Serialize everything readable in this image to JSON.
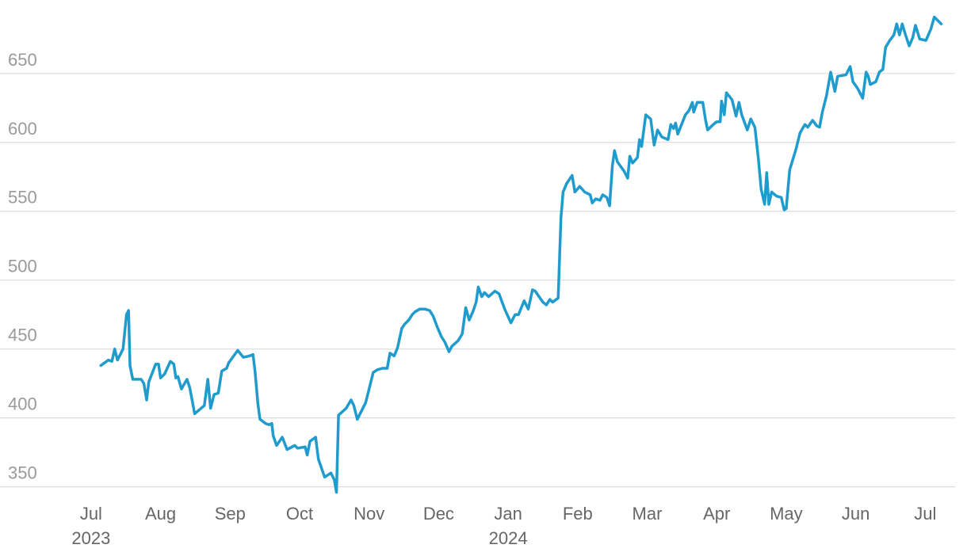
{
  "chart_data": {
    "type": "line",
    "color": "#1f9ccd",
    "grid": true,
    "xlim": [
      -1.31,
      12.43
    ],
    "ylim": [
      340,
      693
    ],
    "yticks": [
      350,
      400,
      450,
      500,
      550,
      600,
      650
    ],
    "xticks": [
      {
        "value": 0,
        "label": "Jul"
      },
      {
        "value": 1,
        "label": "Aug"
      },
      {
        "value": 2,
        "label": "Sep"
      },
      {
        "value": 3,
        "label": "Oct"
      },
      {
        "value": 4,
        "label": "Nov"
      },
      {
        "value": 5,
        "label": "Dec"
      },
      {
        "value": 6,
        "label": "Jan"
      },
      {
        "value": 7,
        "label": "Feb"
      },
      {
        "value": 8,
        "label": "Mar"
      },
      {
        "value": 9,
        "label": "Apr"
      },
      {
        "value": 10,
        "label": "May"
      },
      {
        "value": 11,
        "label": "Jun"
      },
      {
        "value": 12,
        "label": "Jul"
      }
    ],
    "year_labels": [
      {
        "value": 0,
        "label": "2023"
      },
      {
        "value": 6,
        "label": "2024"
      }
    ],
    "x": [
      0.14,
      0.25,
      0.3,
      0.34,
      0.38,
      0.46,
      0.51,
      0.54,
      0.56,
      0.6,
      0.72,
      0.76,
      0.8,
      0.83,
      0.93,
      0.97,
      1.0,
      1.06,
      1.14,
      1.19,
      1.22,
      1.25,
      1.3,
      1.38,
      1.42,
      1.49,
      1.63,
      1.68,
      1.72,
      1.77,
      1.83,
      1.88,
      1.95,
      1.98,
      2.11,
      2.19,
      2.28,
      2.33,
      2.36,
      2.4,
      2.43,
      2.51,
      2.56,
      2.6,
      2.62,
      2.67,
      2.75,
      2.82,
      2.93,
      2.97,
      3.08,
      3.11,
      3.15,
      3.23,
      3.27,
      3.36,
      3.45,
      3.5,
      3.53,
      3.56,
      3.67,
      3.74,
      3.78,
      3.83,
      3.9,
      3.95,
      4.0,
      4.06,
      4.12,
      4.19,
      4.26,
      4.3,
      4.36,
      4.41,
      4.47,
      4.51,
      4.57,
      4.62,
      4.66,
      4.73,
      4.8,
      4.87,
      4.92,
      4.98,
      5.04,
      5.09,
      5.15,
      5.19,
      5.28,
      5.34,
      5.39,
      5.44,
      5.5,
      5.54,
      5.57,
      5.62,
      5.66,
      5.72,
      5.81,
      5.87,
      5.95,
      6.04,
      6.1,
      6.15,
      6.23,
      6.29,
      6.35,
      6.39,
      6.5,
      6.55,
      6.6,
      6.64,
      6.72,
      6.76,
      6.79,
      6.84,
      6.92,
      6.96,
      7.03,
      7.1,
      7.18,
      7.21,
      7.26,
      7.32,
      7.36,
      7.42,
      7.46,
      7.5,
      7.53,
      7.57,
      7.67,
      7.72,
      7.75,
      7.79,
      7.86,
      7.89,
      7.92,
      7.98,
      8.05,
      8.1,
      8.15,
      8.21,
      8.3,
      8.34,
      8.38,
      8.41,
      8.44,
      8.55,
      8.6,
      8.65,
      8.67,
      8.72,
      8.8,
      8.84,
      8.87,
      8.95,
      9.0,
      9.05,
      9.07,
      9.11,
      9.14,
      9.22,
      9.28,
      9.32,
      9.36,
      9.44,
      9.49,
      9.55,
      9.6,
      9.64,
      9.69,
      9.72,
      9.75,
      9.79,
      9.86,
      9.93,
      9.97,
      10.0,
      10.05,
      10.14,
      10.2,
      10.27,
      10.31,
      10.38,
      10.44,
      10.48,
      10.52,
      10.58,
      10.64,
      10.7,
      10.74,
      10.86,
      10.92,
      10.96,
      11.03,
      11.1,
      11.15,
      11.18,
      11.21,
      11.29,
      11.34,
      11.39,
      11.43,
      11.49,
      11.55,
      11.59,
      11.63,
      11.67,
      11.71,
      11.77,
      11.82,
      11.86,
      11.92,
      12.01,
      12.08,
      12.13,
      12.19,
      12.23
    ],
    "values": [
      438,
      442,
      441,
      450,
      442,
      450,
      475,
      478,
      438,
      428,
      428,
      425,
      413,
      426,
      439,
      439,
      429,
      432,
      441,
      439,
      429,
      430,
      421,
      428,
      422,
      403,
      409,
      428,
      407,
      417,
      418,
      434,
      436,
      440,
      449,
      444,
      445,
      446,
      433,
      410,
      399,
      396,
      395,
      396,
      387,
      380,
      386,
      377,
      380,
      378,
      379,
      373,
      383,
      386,
      370,
      357,
      360,
      355,
      346,
      402,
      407,
      413,
      409,
      399,
      406,
      411,
      421,
      433,
      435,
      436,
      436,
      447,
      445,
      451,
      465,
      468,
      471,
      475,
      477,
      479,
      479,
      478,
      474,
      466,
      459,
      455,
      448,
      452,
      456,
      461,
      480,
      471,
      478,
      484,
      495,
      488,
      491,
      488,
      492,
      490,
      479,
      469,
      475,
      475,
      485,
      479,
      493,
      492,
      484,
      482,
      486,
      484,
      487,
      545,
      564,
      570,
      576,
      564,
      568,
      564,
      562,
      556,
      559,
      558,
      562,
      560,
      554,
      583,
      594,
      586,
      579,
      574,
      590,
      585,
      589,
      602,
      597,
      620,
      617,
      598,
      609,
      604,
      602,
      613,
      610,
      614,
      606,
      620,
      623,
      629,
      622,
      629,
      629,
      616,
      609,
      613,
      615,
      615,
      630,
      620,
      636,
      631,
      619,
      629,
      620,
      609,
      617,
      611,
      588,
      566,
      555,
      578,
      555,
      564,
      561,
      560,
      551,
      552,
      580,
      595,
      607,
      613,
      611,
      616,
      612,
      611,
      622,
      634,
      651,
      637,
      648,
      649,
      655,
      644,
      639,
      632,
      651,
      648,
      642,
      644,
      651,
      653,
      669,
      674,
      678,
      686,
      678,
      686,
      679,
      670,
      676,
      685,
      675,
      674,
      682,
      691,
      688,
      686
    ]
  }
}
